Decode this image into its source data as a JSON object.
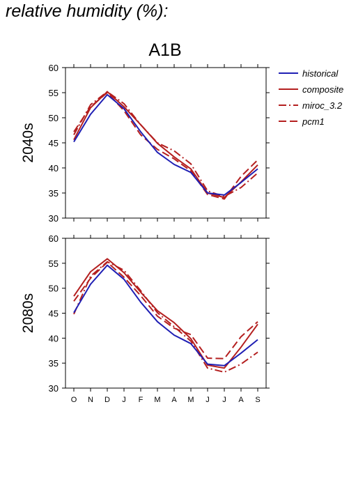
{
  "page": {
    "title": "relative humidity (%):"
  },
  "colors": {
    "historical": "#1f1fb4",
    "model": "#b41f1f",
    "axis": "#000000"
  },
  "chart_data": [
    {
      "type": "line",
      "title": "A1B",
      "ylabel": "2040s",
      "xlabel": "",
      "categories": [
        "O",
        "N",
        "D",
        "J",
        "F",
        "M",
        "A",
        "M",
        "J",
        "J",
        "A",
        "S"
      ],
      "ylim": [
        30,
        60
      ],
      "yticks": [
        30,
        35,
        40,
        45,
        50,
        55,
        60
      ],
      "grid": false,
      "legend": "right",
      "series": [
        {
          "name": "historical",
          "style": "solid",
          "color": "#1f1fb4",
          "values": [
            45.2,
            50.7,
            54.6,
            51.8,
            47.2,
            43.1,
            40.7,
            39.1,
            35.0,
            34.6,
            37.1,
            39.8
          ]
        },
        {
          "name": "composite",
          "style": "solid",
          "color": "#b41f1f",
          "values": [
            45.6,
            52.0,
            55.2,
            52.2,
            48.6,
            44.9,
            42.2,
            39.8,
            35.0,
            34.1,
            37.2,
            40.6
          ]
        },
        {
          "name": "miroc_3.2",
          "style": "dashdot",
          "color": "#b41f1f",
          "values": [
            46.6,
            52.6,
            55.2,
            52.8,
            48.6,
            45.0,
            43.4,
            40.8,
            35.4,
            34.3,
            36.1,
            39.0
          ]
        },
        {
          "name": "pcm1",
          "style": "dash",
          "color": "#b41f1f",
          "values": [
            47.2,
            52.2,
            55.0,
            51.4,
            46.6,
            43.7,
            41.8,
            39.4,
            34.7,
            33.8,
            38.3,
            41.6
          ]
        }
      ]
    },
    {
      "type": "line",
      "title": "",
      "ylabel": "2080s",
      "xlabel": "",
      "categories": [
        "O",
        "N",
        "D",
        "J",
        "F",
        "M",
        "A",
        "M",
        "J",
        "J",
        "A",
        "S"
      ],
      "ylim": [
        30,
        60
      ],
      "yticks": [
        30,
        35,
        40,
        45,
        50,
        55,
        60
      ],
      "grid": false,
      "legend": "",
      "series": [
        {
          "name": "historical",
          "style": "solid",
          "color": "#1f1fb4",
          "values": [
            45.1,
            50.8,
            54.6,
            51.8,
            47.2,
            43.3,
            40.6,
            38.9,
            34.8,
            34.5,
            37.0,
            39.7
          ]
        },
        {
          "name": "composite",
          "style": "solid",
          "color": "#b41f1f",
          "values": [
            48.4,
            53.3,
            55.9,
            53.1,
            49.2,
            45.5,
            43.1,
            39.9,
            34.6,
            34.0,
            38.2,
            42.8
          ]
        },
        {
          "name": "miroc_3.2",
          "style": "dashdot",
          "color": "#b41f1f",
          "values": [
            44.8,
            52.4,
            55.3,
            53.6,
            49.5,
            45.1,
            42.3,
            39.4,
            34.0,
            33.2,
            34.8,
            37.2
          ]
        },
        {
          "name": "pcm1",
          "style": "dash",
          "color": "#b41f1f",
          "values": [
            47.4,
            52.0,
            55.2,
            52.2,
            48.5,
            44.4,
            42.0,
            40.7,
            36.0,
            35.9,
            40.3,
            43.3
          ]
        }
      ]
    }
  ]
}
